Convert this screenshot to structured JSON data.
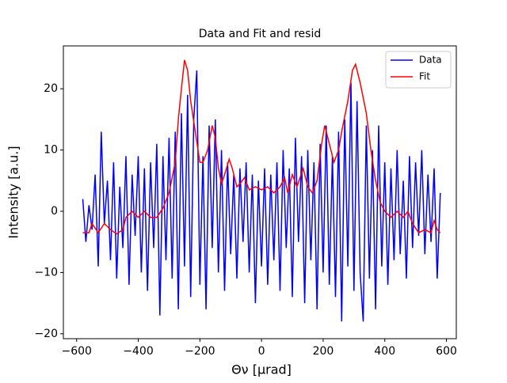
{
  "chart_data": {
    "type": "line",
    "title": "Data and Fit and resid",
    "xlabel": "Θν [μrad]",
    "ylabel": "Intensity [a.u.]",
    "x": [
      -580,
      -570,
      -560,
      -550,
      -540,
      -530,
      -520,
      -510,
      -500,
      -490,
      -480,
      -470,
      -460,
      -450,
      -440,
      -430,
      -420,
      -410,
      -400,
      -390,
      -380,
      -370,
      -360,
      -350,
      -340,
      -330,
      -320,
      -310,
      -300,
      -290,
      -280,
      -270,
      -260,
      -250,
      -240,
      -230,
      -220,
      -210,
      -200,
      -190,
      -180,
      -170,
      -160,
      -150,
      -140,
      -130,
      -120,
      -110,
      -100,
      -90,
      -80,
      -70,
      -60,
      -50,
      -40,
      -30,
      -20,
      -10,
      0,
      10,
      20,
      30,
      40,
      50,
      60,
      70,
      80,
      90,
      100,
      110,
      120,
      130,
      140,
      150,
      160,
      170,
      180,
      190,
      200,
      210,
      220,
      230,
      240,
      250,
      260,
      270,
      280,
      290,
      300,
      310,
      320,
      330,
      340,
      350,
      360,
      370,
      380,
      390,
      400,
      410,
      420,
      430,
      440,
      450,
      460,
      470,
      480,
      490,
      500,
      510,
      520,
      530,
      540,
      550,
      560,
      570,
      580
    ],
    "series": [
      {
        "name": "Data",
        "color": "#0000ff",
        "values": [
          2,
          -5,
          1,
          -3,
          6,
          -9,
          13,
          -2,
          5,
          -8,
          8,
          -11,
          4,
          -6,
          9,
          -12,
          6,
          -4,
          9,
          -10,
          7,
          -13,
          8,
          -6,
          11,
          -17,
          9,
          -8,
          12,
          -11,
          13,
          -16,
          16,
          -9,
          19,
          -14,
          15,
          23,
          -12,
          9,
          -16,
          14,
          -6,
          15,
          -10,
          10,
          -13,
          8,
          -7,
          6,
          -11,
          7,
          -5,
          8,
          -10,
          6,
          -15,
          5,
          -9,
          7,
          -12,
          6,
          -8,
          8,
          -13,
          10,
          -6,
          7,
          -14,
          12,
          -5,
          9,
          -15,
          10,
          -8,
          8,
          -16,
          11,
          -10,
          14,
          -12,
          9,
          -14,
          13,
          -18,
          15,
          -9,
          21,
          -13,
          18,
          -10,
          -18,
          14,
          -11,
          10,
          -16,
          14,
          -9,
          8,
          -12,
          7,
          -8,
          10,
          -7,
          5,
          -11,
          9,
          -6,
          8,
          -4,
          10,
          -7,
          6,
          -5,
          7,
          -11,
          3
        ]
      },
      {
        "name": "Fit",
        "color": "#ff0000",
        "x": [
          -580,
          -560,
          -550,
          -530,
          -510,
          -490,
          -470,
          -450,
          -440,
          -420,
          -400,
          -380,
          -360,
          -340,
          -320,
          -300,
          -280,
          -270,
          -260,
          -250,
          -240,
          -230,
          -215,
          -200,
          -190,
          -175,
          -160,
          -150,
          -140,
          -130,
          -120,
          -105,
          -95,
          -80,
          -70,
          -55,
          -40,
          -20,
          0,
          20,
          40,
          60,
          75,
          85,
          100,
          115,
          135,
          150,
          165,
          180,
          195,
          205,
          220,
          235,
          250,
          260,
          280,
          295,
          305,
          320,
          340,
          355,
          370,
          385,
          400,
          420,
          440,
          460,
          475,
          490,
          510,
          530,
          550,
          560,
          570,
          580
        ],
        "values": [
          -3.5,
          -3.5,
          -2,
          -3.5,
          -2,
          -3,
          -3.7,
          -3,
          -1,
          0,
          -1,
          0,
          -1,
          -1,
          0.5,
          3,
          8,
          15,
          20,
          24.7,
          23,
          18,
          13,
          8,
          8,
          10,
          14,
          12,
          7,
          4.5,
          6,
          8.5,
          7,
          4,
          4.5,
          5.5,
          3.5,
          4,
          3.5,
          4,
          3,
          4,
          5.5,
          3,
          6,
          4,
          7,
          4,
          3,
          5,
          11,
          14,
          11,
          8,
          10,
          13,
          18,
          23,
          24,
          21,
          16,
          10,
          5,
          1.5,
          0,
          -1,
          0,
          -1,
          0,
          -2,
          -3.5,
          -3,
          -3.5,
          -1.5,
          -3,
          -3.5
        ]
      }
    ],
    "xlim": [
      -643,
      632
    ],
    "ylim": [
      -20.8,
      27.0
    ],
    "xticks": [
      {
        "value": -600,
        "label": "−600"
      },
      {
        "value": -400,
        "label": "−400"
      },
      {
        "value": -200,
        "label": "−200"
      },
      0,
      200,
      400,
      600
    ],
    "yticks": [
      {
        "value": -20,
        "label": "−20"
      },
      {
        "value": -10,
        "label": "−10"
      },
      0,
      10,
      20
    ],
    "legend": "upper right"
  }
}
